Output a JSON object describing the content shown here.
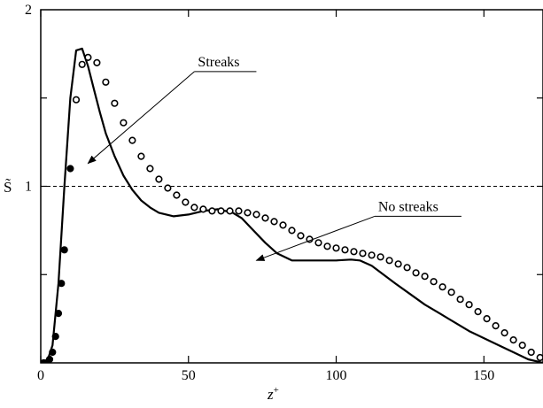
{
  "chart_data": {
    "type": "line",
    "title": "",
    "xlabel": "z",
    "xlabel_sup": "+",
    "ylabel": "S̃",
    "xlim": [
      0,
      170
    ],
    "ylim": [
      0,
      2
    ],
    "xticks": [
      0,
      50,
      100,
      150
    ],
    "xtick_labels": [
      "0",
      "50",
      "100",
      "150"
    ],
    "yticks": [
      1,
      2
    ],
    "ytick_labels": [
      "1",
      "2"
    ],
    "grid": false,
    "reference_line": {
      "y": 1,
      "style": "dashed"
    },
    "annotations": [
      {
        "text": "Streaks",
        "label_at": [
          52,
          1.65
        ],
        "arrow_to": [
          16,
          1.13
        ]
      },
      {
        "text": "No streaks",
        "label_at": [
          113,
          0.83
        ],
        "arrow_to": [
          73,
          0.58
        ]
      }
    ],
    "series": [
      {
        "style": "solid-line",
        "x": [
          2,
          4,
          6,
          8,
          10,
          12,
          14,
          16,
          18,
          20,
          22,
          25,
          28,
          31,
          34,
          37,
          40,
          45,
          50,
          55,
          60,
          65,
          68,
          72,
          76,
          80,
          85,
          90,
          95,
          100,
          105,
          108,
          112,
          116,
          120,
          125,
          130,
          135,
          140,
          145,
          150,
          155,
          160,
          165,
          170
        ],
        "y": [
          0.0,
          0.1,
          0.45,
          1.0,
          1.5,
          1.77,
          1.78,
          1.68,
          1.55,
          1.42,
          1.3,
          1.17,
          1.06,
          0.98,
          0.92,
          0.88,
          0.85,
          0.83,
          0.84,
          0.86,
          0.87,
          0.85,
          0.82,
          0.75,
          0.68,
          0.62,
          0.58,
          0.58,
          0.58,
          0.58,
          0.585,
          0.58,
          0.55,
          0.5,
          0.45,
          0.39,
          0.33,
          0.28,
          0.23,
          0.18,
          0.14,
          0.1,
          0.06,
          0.02,
          0.0
        ]
      },
      {
        "style": "circles-filled-near-wall",
        "x": [
          1,
          2,
          3,
          4,
          5,
          6,
          7,
          8,
          10,
          12,
          14,
          16,
          19,
          22,
          25,
          28,
          31,
          34,
          37,
          40,
          43,
          46,
          49,
          52,
          55,
          58,
          61,
          64,
          67,
          70,
          73,
          76,
          79,
          82,
          85,
          88,
          91,
          94,
          97,
          100,
          103,
          106,
          109,
          112,
          115,
          118,
          121,
          124,
          127,
          130,
          133,
          136,
          139,
          142,
          145,
          148,
          151,
          154,
          157,
          160,
          163,
          166,
          169
        ],
        "y": [
          0.0,
          0.0,
          0.02,
          0.06,
          0.15,
          0.28,
          0.45,
          0.64,
          1.1,
          1.49,
          1.69,
          1.73,
          1.7,
          1.59,
          1.47,
          1.36,
          1.26,
          1.17,
          1.1,
          1.04,
          0.99,
          0.95,
          0.91,
          0.88,
          0.87,
          0.86,
          0.86,
          0.86,
          0.86,
          0.85,
          0.84,
          0.82,
          0.8,
          0.78,
          0.75,
          0.72,
          0.7,
          0.68,
          0.66,
          0.65,
          0.64,
          0.63,
          0.62,
          0.61,
          0.6,
          0.58,
          0.56,
          0.54,
          0.51,
          0.49,
          0.46,
          0.43,
          0.4,
          0.36,
          0.33,
          0.29,
          0.25,
          0.21,
          0.17,
          0.13,
          0.1,
          0.06,
          0.03
        ],
        "filled_below_x": 11
      }
    ]
  }
}
